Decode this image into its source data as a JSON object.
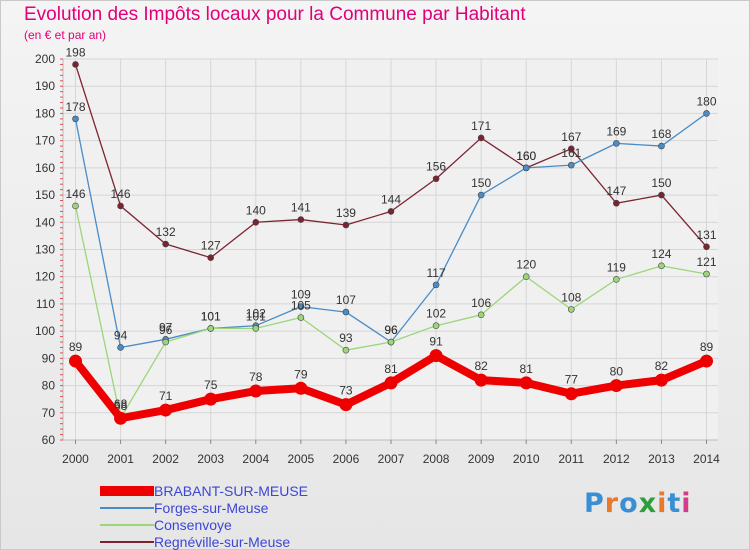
{
  "title": "Evolution des Impôts locaux pour la Commune par Habitant",
  "subtitle": "(en € et par an)",
  "logo": {
    "letters": [
      "P",
      "r",
      "o",
      "x",
      "i",
      "t",
      "i"
    ],
    "colors": [
      "#3a8fd4",
      "#e8782a",
      "#3a8fd4",
      "#2e9e3c",
      "#e8782a",
      "#3a8fd4",
      "#d63a8c"
    ]
  },
  "colors": {
    "title": "#e2007a",
    "legend_text": "#3b46d6",
    "axis_text": "#333333"
  },
  "chart_data": {
    "type": "line",
    "x": [
      2000,
      2001,
      2002,
      2003,
      2004,
      2005,
      2006,
      2007,
      2008,
      2009,
      2010,
      2011,
      2012,
      2013,
      2014
    ],
    "ylim": [
      60,
      200
    ],
    "yticks": [
      60,
      70,
      80,
      90,
      100,
      110,
      120,
      130,
      140,
      150,
      160,
      170,
      180,
      190,
      200
    ],
    "grid": true,
    "legend_position": "bottom-left",
    "series": [
      {
        "name": "Regnéville-sur-Meuse",
        "color": "#7b2430",
        "values": [
          198,
          146,
          132,
          127,
          140,
          141,
          139,
          144,
          156,
          171,
          160,
          167,
          147,
          150,
          131
        ],
        "labels": [
          "198",
          "146",
          "132",
          "127",
          "140",
          "141",
          "139",
          "144",
          "156",
          "171",
          "160",
          "167",
          "147",
          "150",
          "131"
        ]
      },
      {
        "name": "Forges-sur-Meuse",
        "color": "#4a8cc6",
        "values": [
          178,
          94,
          97,
          101,
          102,
          109,
          107,
          96,
          117,
          150,
          160,
          161,
          169,
          168,
          180
        ],
        "labels": [
          "178",
          "94",
          "97",
          "101",
          "102",
          "109",
          "107",
          "96",
          "117",
          "150",
          "160",
          "161",
          "169",
          "168",
          "180"
        ]
      },
      {
        "name": "Consenvoye",
        "color": "#9bd67a",
        "values": [
          146,
          68,
          96,
          101,
          101,
          105,
          93,
          96,
          102,
          106,
          120,
          108,
          119,
          124,
          121
        ],
        "labels": [
          "146",
          "68",
          "96",
          "101",
          "101",
          "105",
          "93",
          "96",
          "102",
          "106",
          "120",
          "108",
          "119",
          "124",
          "121"
        ]
      },
      {
        "name": "BRABANT-SUR-MEUSE",
        "color": "#ee0000",
        "values": [
          89,
          68,
          71,
          75,
          78,
          79,
          73,
          81,
          91,
          82,
          81,
          77,
          80,
          82,
          89
        ],
        "labels": [
          "89",
          "68",
          "71",
          "75",
          "78",
          "79",
          "73",
          "81",
          "91",
          "82",
          "81",
          "77",
          "80",
          "82",
          "89"
        ],
        "thick": true
      }
    ],
    "legend_order": [
      "BRABANT-SUR-MEUSE",
      "Forges-sur-Meuse",
      "Consenvoye",
      "Regnéville-sur-Meuse"
    ]
  }
}
